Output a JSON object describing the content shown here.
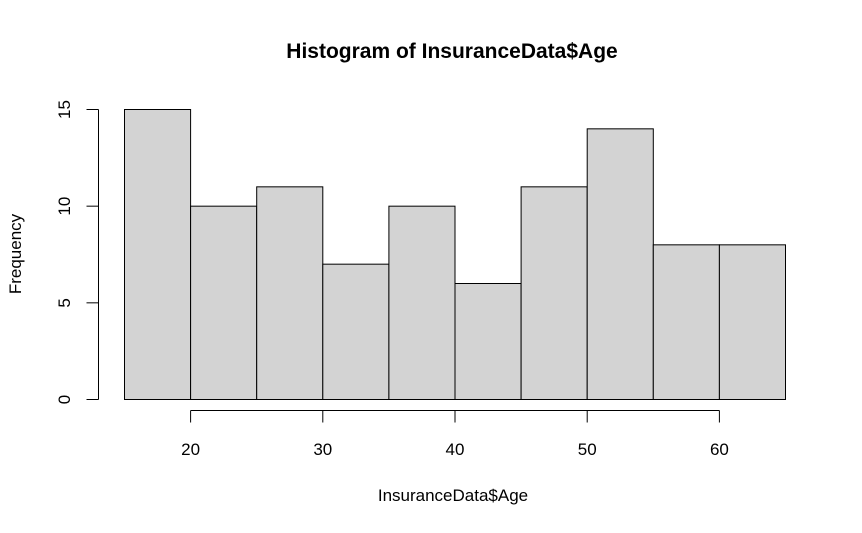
{
  "chart_data": {
    "type": "bar",
    "title": "Histogram of InsuranceData$Age",
    "xlabel": "InsuranceData$Age",
    "ylabel": "Frequency",
    "bins": [
      {
        "from": 15,
        "to": 20,
        "count": 15
      },
      {
        "from": 20,
        "to": 25,
        "count": 10
      },
      {
        "from": 25,
        "to": 30,
        "count": 11
      },
      {
        "from": 30,
        "to": 35,
        "count": 7
      },
      {
        "from": 35,
        "to": 40,
        "count": 10
      },
      {
        "from": 40,
        "to": 45,
        "count": 6
      },
      {
        "from": 45,
        "to": 50,
        "count": 11
      },
      {
        "from": 50,
        "to": 55,
        "count": 14
      },
      {
        "from": 55,
        "to": 60,
        "count": 8
      },
      {
        "from": 60,
        "to": 65,
        "count": 8
      }
    ],
    "x_ticks": [
      "20",
      "30",
      "40",
      "50",
      "60"
    ],
    "y_ticks": [
      "0",
      "5",
      "10",
      "15"
    ],
    "xlim": [
      15,
      65
    ],
    "ylim": [
      0,
      15
    ],
    "bar_color": "#d3d3d3",
    "grid": false
  }
}
